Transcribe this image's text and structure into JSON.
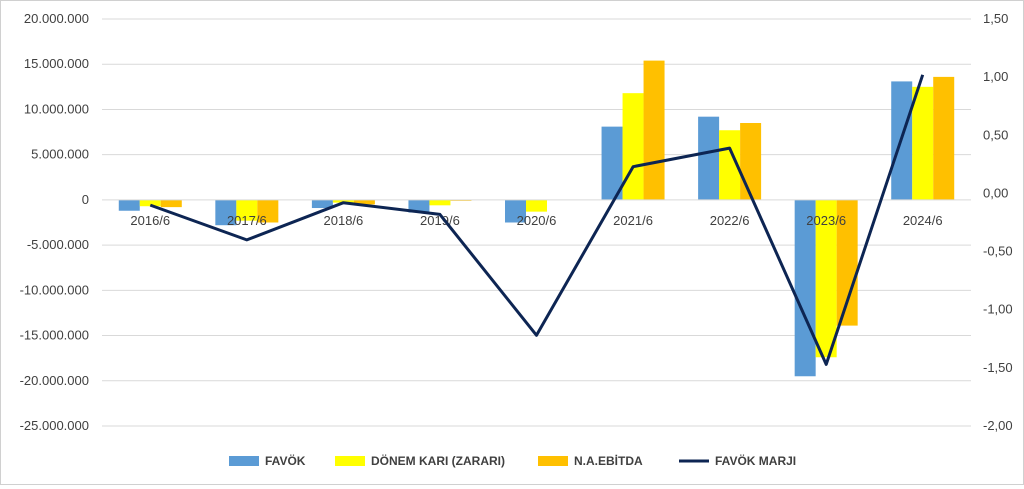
{
  "chart_data": {
    "type": "bar",
    "categories": [
      "2016/6",
      "2017/6",
      "2018/6",
      "2019/6",
      "2020/6",
      "2021/6",
      "2022/6",
      "2023/6",
      "2024/6"
    ],
    "series": [
      {
        "name": "FAVÖK",
        "kind": "bar",
        "axis": "left",
        "color": "#5b9bd5",
        "values": [
          -1200000,
          -2800000,
          -900000,
          -1400000,
          -2500000,
          8100000,
          9200000,
          -19500000,
          13100000
        ]
      },
      {
        "name": "DÖNEM KARI (ZARARI)",
        "kind": "bar",
        "axis": "left",
        "color": "#ffff00",
        "values": [
          -700000,
          -2300000,
          -300000,
          -600000,
          -1300000,
          11800000,
          7700000,
          -17400000,
          12500000
        ]
      },
      {
        "name": "N.A.EBİTDA",
        "kind": "bar",
        "axis": "left",
        "color": "#ffc000",
        "values": [
          -800000,
          -2500000,
          -500000,
          -100000,
          0,
          15400000,
          8500000,
          -13900000,
          13600000
        ]
      },
      {
        "name": "FAVÖK MARJI",
        "kind": "line",
        "axis": "right",
        "color": "#0d2553",
        "values": [
          -0.1,
          -0.4,
          -0.08,
          -0.18,
          -1.22,
          0.23,
          0.39,
          -1.47,
          1.02
        ]
      }
    ],
    "y_left": {
      "ylim": [
        -25000000,
        20000000
      ],
      "ticks": [
        20000000,
        15000000,
        10000000,
        5000000,
        0,
        -5000000,
        -10000000,
        -15000000,
        -20000000,
        -25000000
      ],
      "tick_labels": [
        "20.000.000",
        "15.000.000",
        "10.000.000",
        "5.000.000",
        "0",
        "-5.000.000",
        "-10.000.000",
        "-15.000.000",
        "-20.000.000",
        "-25.000.000"
      ]
    },
    "y_right": {
      "ylim": [
        -2.0,
        1.5
      ],
      "ticks": [
        1.5,
        1.0,
        0.5,
        0.0,
        -0.5,
        -1.0,
        -1.5,
        -2.0
      ],
      "tick_labels": [
        "1,50",
        "1,00",
        "0,50",
        "0,00",
        "-0,50",
        "-1,00",
        "-1,50",
        "-2,00"
      ]
    },
    "grid": true,
    "legend": "bottom",
    "title": "",
    "xlabel": "",
    "ylabel": ""
  }
}
